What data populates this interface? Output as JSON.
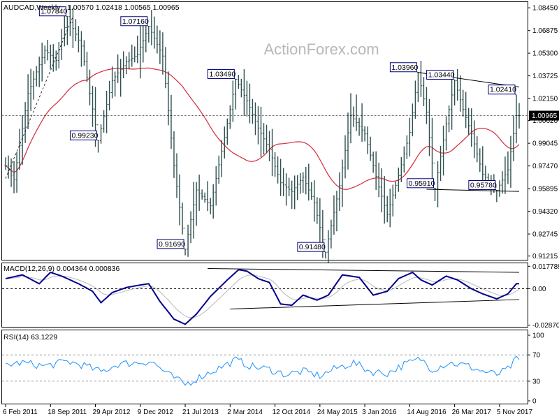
{
  "chart_data": [
    {
      "type": "candlestick",
      "title": "AUDCAD,Weekly",
      "ohlc_last": [
        "1.00570",
        "1.02418",
        "1.00565",
        "1.00965"
      ],
      "watermark": "ActionForex.com",
      "current_price": "1.00965",
      "ylim": [
        0.911,
        1.087
      ],
      "y_ticks": [
        "1.08450",
        "1.06875",
        "1.05300",
        "1.03725",
        "1.02150",
        "1.00620",
        "0.99045",
        "0.97470",
        "0.95895",
        "0.94320",
        "0.92745",
        "0.91215"
      ],
      "x_labels": [
        "6 Feb 2011",
        "18 Sep 2011",
        "29 Apr 2012",
        "9 Dec 2012",
        "21 Jul 2013",
        "2 Mar 2014",
        "12 Oct 2014",
        "24 May 2015",
        "3 Jan 2016",
        "14 Aug 2016",
        "26 Mar 2017",
        "5 Nov 2017"
      ],
      "price_anchors": [
        [
          0,
          0.975
        ],
        [
          3,
          0.965
        ],
        [
          8,
          1.025
        ],
        [
          14,
          1.055
        ],
        [
          18,
          1.048
        ],
        [
          22,
          1.0784
        ],
        [
          27,
          1.058
        ],
        [
          33,
          0.9923
        ],
        [
          38,
          1.034
        ],
        [
          43,
          1.047
        ],
        [
          47,
          1.052
        ],
        [
          51,
          1.0716
        ],
        [
          56,
          1.051
        ],
        [
          60,
          0.975
        ],
        [
          64,
          0.9169
        ],
        [
          68,
          0.958
        ],
        [
          73,
          0.947
        ],
        [
          77,
          0.985
        ],
        [
          80,
          1.014
        ],
        [
          82,
          1.0349
        ],
        [
          86,
          1.02
        ],
        [
          90,
          1.001
        ],
        [
          94,
          0.986
        ],
        [
          98,
          0.963
        ],
        [
          102,
          0.957
        ],
        [
          106,
          0.967
        ],
        [
          110,
          0.949
        ],
        [
          114,
          0.9148
        ],
        [
          119,
          0.961
        ],
        [
          123,
          1.01
        ],
        [
          128,
          0.997
        ],
        [
          133,
          0.96
        ],
        [
          136,
          0.941
        ],
        [
          140,
          0.968
        ],
        [
          144,
          0.998
        ],
        [
          147,
          1.0396
        ],
        [
          150,
          1.012
        ],
        [
          153,
          0.9591
        ],
        [
          157,
          1.004
        ],
        [
          160,
          1.034
        ],
        [
          163,
          1.014
        ],
        [
          166,
          0.997
        ],
        [
          170,
          0.969
        ],
        [
          175,
          0.9578
        ],
        [
          179,
          0.972
        ],
        [
          182,
          1.00965
        ]
      ],
      "series": [
        {
          "name": "",
          "type": "price",
          "color": "#2F4F4F"
        },
        {
          "name": "",
          "type": "moving-average",
          "color": "#D42A3A"
        }
      ],
      "annotations": [
        {
          "text": "1.07840",
          "bar": 22,
          "price": 1.0784
        },
        {
          "text": "1.07160",
          "bar": 51,
          "price": 1.0716
        },
        {
          "text": "0.99230",
          "bar": 33,
          "price": 0.9923
        },
        {
          "text": "1.03490",
          "bar": 82,
          "price": 1.0349
        },
        {
          "text": "0.91690",
          "bar": 64,
          "price": 0.9169
        },
        {
          "text": "0.91480",
          "bar": 114,
          "price": 0.9148
        },
        {
          "text": "1.03960",
          "bar": 147,
          "price": 1.0396
        },
        {
          "text": "1.03440",
          "bar": 160,
          "price": 1.0344
        },
        {
          "text": "0.95910",
          "bar": 153,
          "price": 0.9591
        },
        {
          "text": "0.95780",
          "bar": 175,
          "price": 0.9578
        },
        {
          "text": "1.02410",
          "bar": 182,
          "price": 1.0241
        }
      ],
      "trendlines": [
        {
          "from": [
            147,
            1.0396
          ],
          "to": [
            183,
            1.0295
          ]
        },
        {
          "from": [
            150,
            0.9585
          ],
          "to": [
            183,
            0.957
          ]
        }
      ]
    },
    {
      "type": "line",
      "title": "MACD(12,26,9) 0.004364 0.000836",
      "y_ticks": [
        "0.017789",
        "0.00",
        "-0.028702"
      ],
      "ylim": [
        -0.0295,
        0.0185
      ],
      "series": [
        {
          "name": "",
          "type": "macd",
          "color": "#00008B"
        },
        {
          "name": "",
          "type": "signal",
          "color": "#C0C0C0"
        }
      ],
      "macd_anchors": [
        [
          0,
          0.008
        ],
        [
          6,
          0.011
        ],
        [
          12,
          0.004
        ],
        [
          16,
          0.013
        ],
        [
          20,
          0.01
        ],
        [
          26,
          0.004
        ],
        [
          31,
          -0.002
        ],
        [
          34,
          -0.011
        ],
        [
          38,
          -0.003
        ],
        [
          43,
          0.001
        ],
        [
          48,
          0.003
        ],
        [
          51,
          0.004
        ],
        [
          55,
          -0.01
        ],
        [
          60,
          -0.024
        ],
        [
          64,
          -0.028
        ],
        [
          68,
          -0.02
        ],
        [
          73,
          -0.006
        ],
        [
          79,
          0.007
        ],
        [
          83,
          0.015
        ],
        [
          86,
          0.014
        ],
        [
          90,
          0.008
        ],
        [
          94,
          0.005
        ],
        [
          98,
          -0.012
        ],
        [
          102,
          -0.013
        ],
        [
          106,
          -0.005
        ],
        [
          111,
          -0.009
        ],
        [
          115,
          -0.005
        ],
        [
          120,
          0.011
        ],
        [
          126,
          0.009
        ],
        [
          131,
          -0.005
        ],
        [
          136,
          -0.002
        ],
        [
          140,
          0.008
        ],
        [
          145,
          0.013
        ],
        [
          148,
          0.007
        ],
        [
          152,
          0.003
        ],
        [
          157,
          0.01
        ],
        [
          161,
          0.007
        ],
        [
          166,
          0.0
        ],
        [
          170,
          -0.004
        ],
        [
          175,
          -0.008
        ],
        [
          179,
          -0.004
        ],
        [
          182,
          0.004
        ]
      ],
      "trendlines": [
        {
          "from": [
            72,
            0.016
          ],
          "to": [
            183,
            0.013
          ]
        },
        {
          "from": [
            80,
            -0.016
          ],
          "to": [
            183,
            -0.0085
          ]
        }
      ]
    },
    {
      "type": "line",
      "title": "RSI(14) 63.1229",
      "y_ticks": [
        "100",
        "70",
        "30",
        "0"
      ],
      "ylim": [
        0,
        100
      ],
      "series": [
        {
          "name": "",
          "type": "rsi",
          "color": "#1E90FF"
        }
      ],
      "rsi_anchors": [
        [
          0,
          55
        ],
        [
          6,
          58
        ],
        [
          14,
          53
        ],
        [
          22,
          60
        ],
        [
          28,
          54
        ],
        [
          34,
          44
        ],
        [
          40,
          56
        ],
        [
          46,
          58
        ],
        [
          52,
          60
        ],
        [
          58,
          40
        ],
        [
          64,
          25
        ],
        [
          70,
          38
        ],
        [
          76,
          50
        ],
        [
          82,
          62
        ],
        [
          88,
          52
        ],
        [
          94,
          48
        ],
        [
          100,
          40
        ],
        [
          106,
          45
        ],
        [
          112,
          38
        ],
        [
          118,
          50
        ],
        [
          124,
          58
        ],
        [
          130,
          45
        ],
        [
          136,
          42
        ],
        [
          142,
          55
        ],
        [
          148,
          64
        ],
        [
          152,
          48
        ],
        [
          158,
          58
        ],
        [
          164,
          54
        ],
        [
          170,
          45
        ],
        [
          175,
          40
        ],
        [
          179,
          48
        ],
        [
          182,
          63
        ]
      ]
    }
  ]
}
